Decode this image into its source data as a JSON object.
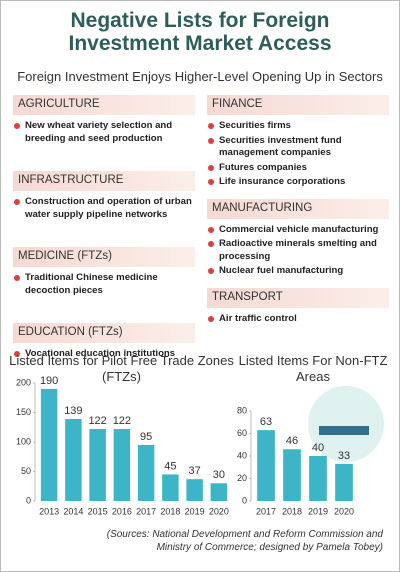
{
  "title": "Negative Lists for Foreign Investment Market Access",
  "subtitle": "Foreign Investment Enjoys Higher-Level Opening Up in Sectors",
  "sectors": [
    {
      "name": "AGRICULTURE",
      "items": [
        "New wheat variety selection and breeding and seed production"
      ]
    },
    {
      "name": "INFRASTRUCTURE",
      "items": [
        "Construction and operation of urban water supply pipeline networks"
      ]
    },
    {
      "name": "MEDICINE (FTZs)",
      "items": [
        "Traditional Chinese medicine decoction pieces"
      ]
    },
    {
      "name": "EDUCATION (FTZs)",
      "items": [
        "Vocational education institutions"
      ]
    },
    {
      "name": "FINANCE",
      "items": [
        "Securities firms",
        "Securities investment fund management companies",
        "Futures companies",
        "Life insurance corporations"
      ]
    },
    {
      "name": "MANUFACTURING",
      "items": [
        "Commercial vehicle manufacturing",
        "Radioactive minerals smelting and processing",
        "Nuclear fuel manufacturing"
      ]
    },
    {
      "name": "TRANSPORT",
      "items": [
        "Air traffic control"
      ]
    }
  ],
  "chart_data": [
    {
      "type": "bar",
      "title": "Listed Items for Pilot Free Trade Zones (FTZs)",
      "categories": [
        "2013",
        "2014",
        "2015",
        "2016",
        "2017",
        "2018",
        "2019",
        "2020"
      ],
      "values": [
        190,
        139,
        122,
        122,
        95,
        45,
        37,
        30
      ],
      "color": "#3db5c6",
      "ylim": [
        0,
        200
      ],
      "yticks": [
        0,
        50,
        100,
        150,
        200
      ]
    },
    {
      "type": "bar",
      "title": "Listed Items For Non-FTZ Areas",
      "categories": [
        "2017",
        "2018",
        "2019",
        "2020"
      ],
      "values": [
        63,
        46,
        40,
        33
      ],
      "color": "#3db5c6",
      "ylim": [
        0,
        80
      ],
      "yticks": [
        0,
        20,
        40,
        60,
        80
      ]
    }
  ],
  "source": "(Sources: National Development and Reform Commission and Ministry of Commerce; designed by Pamela Tobey)"
}
